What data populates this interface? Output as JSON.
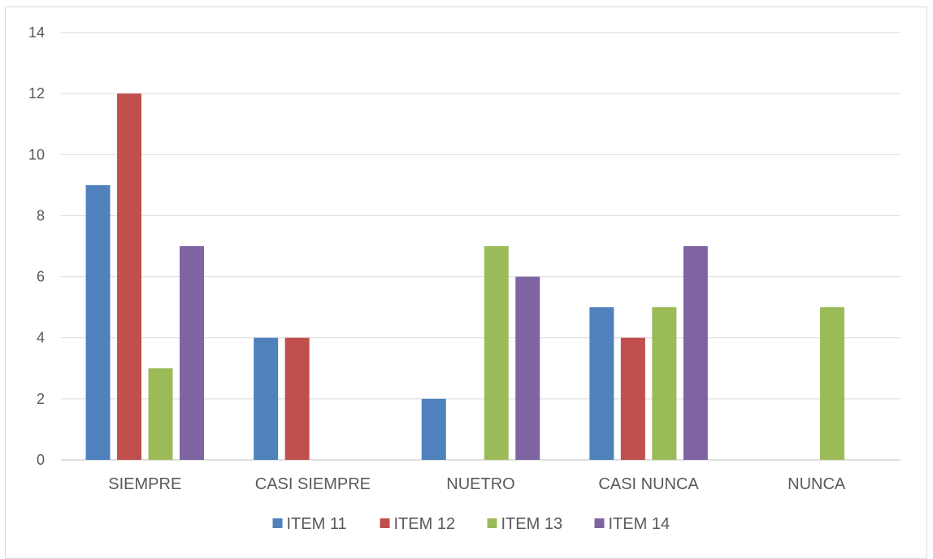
{
  "chart_data": {
    "type": "bar",
    "categories": [
      "SIEMPRE",
      "CASI SIEMPRE",
      "NUETRO",
      "CASI NUNCA",
      "NUNCA"
    ],
    "series": [
      {
        "name": "ITEM 11",
        "color": "#4f81bd",
        "values": [
          9,
          4,
          2,
          5,
          0
        ]
      },
      {
        "name": "ITEM 12",
        "color": "#c0504d",
        "values": [
          12,
          4,
          0,
          4,
          0
        ]
      },
      {
        "name": "ITEM 13",
        "color": "#9bbb59",
        "values": [
          3,
          0,
          7,
          5,
          5
        ]
      },
      {
        "name": "ITEM 14",
        "color": "#8064a2",
        "values": [
          7,
          0,
          6,
          7,
          0
        ]
      }
    ],
    "ylim": [
      0,
      14
    ],
    "yticks": [
      0,
      2,
      4,
      6,
      8,
      10,
      12,
      14
    ],
    "grid": true,
    "legend_position": "bottom"
  }
}
